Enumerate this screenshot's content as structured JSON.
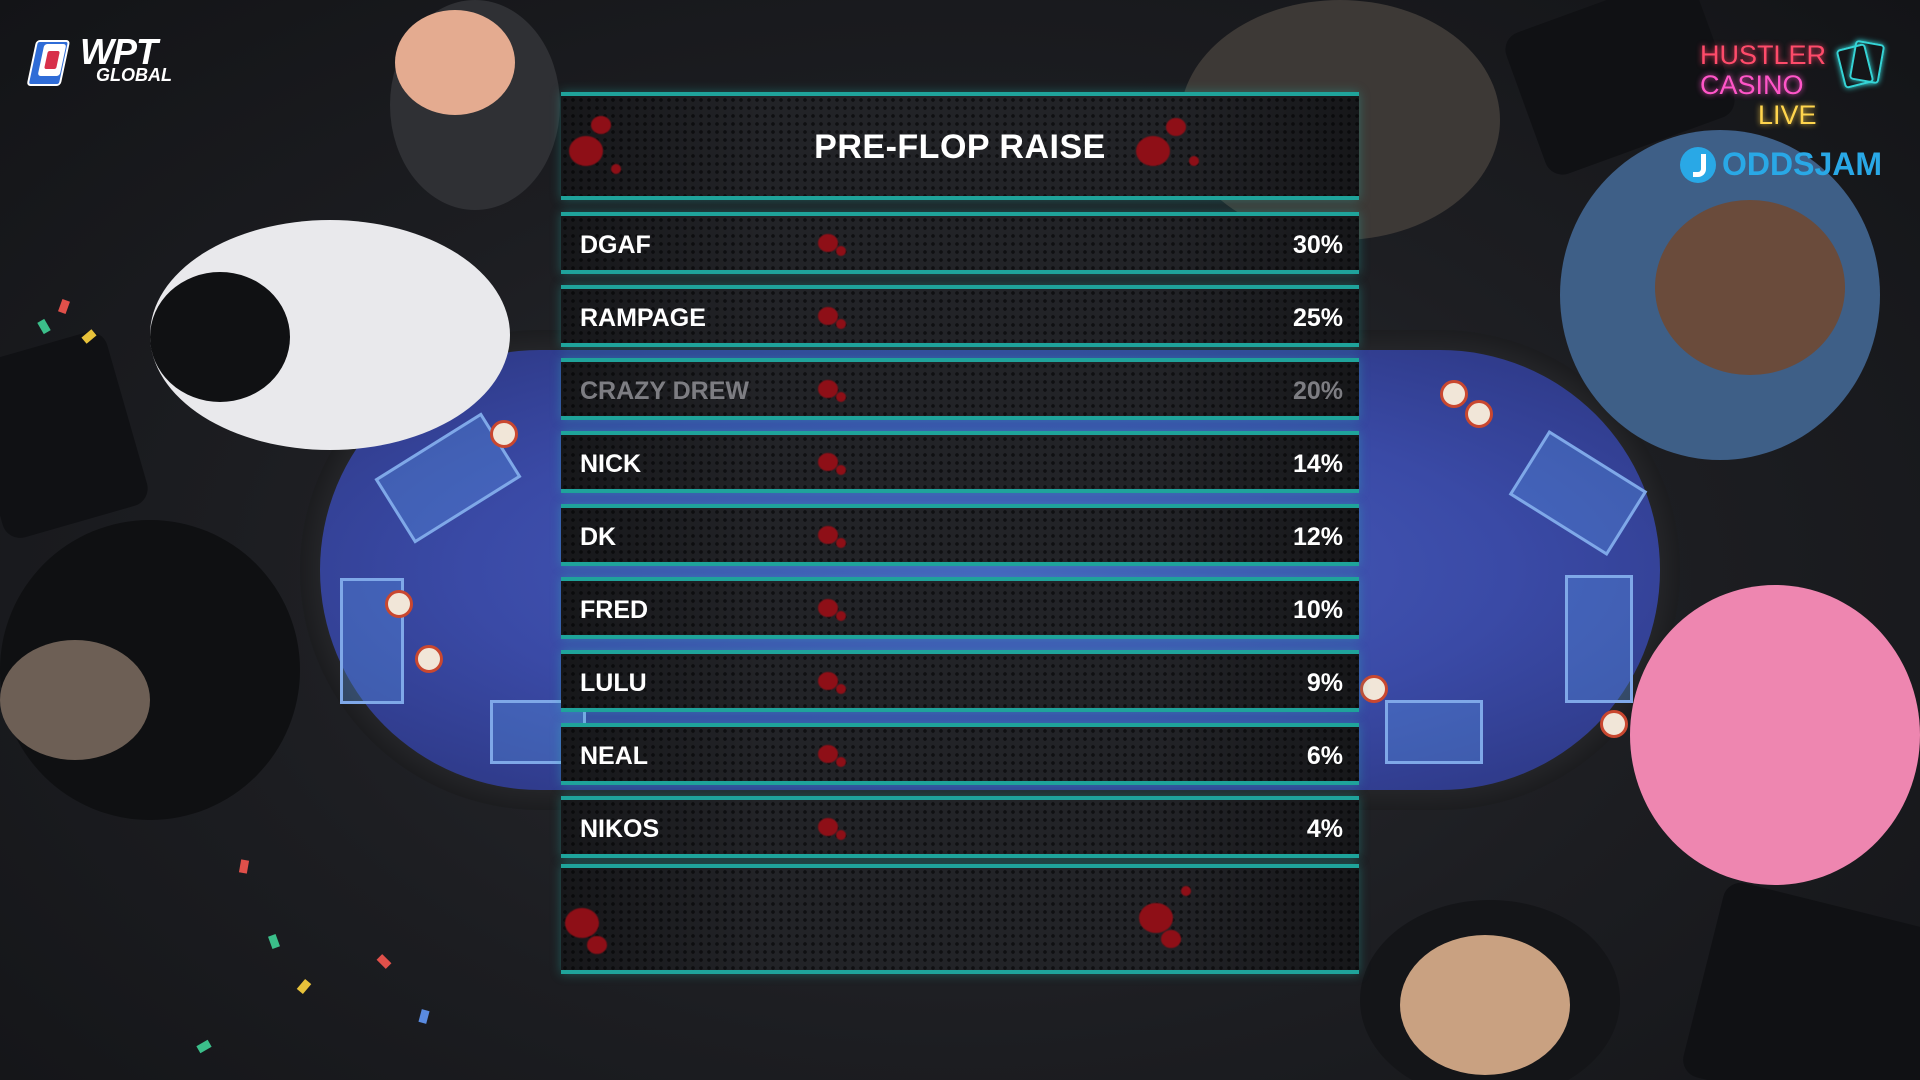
{
  "logos": {
    "wpt_mark": "WPT",
    "wpt_sub": "GLOBAL",
    "hustler_line1": "HUSTLER",
    "hustler_line2": "CASINO",
    "hustler_line3": "LIVE",
    "oddsjam": "ODDSJAM"
  },
  "leaderboard": {
    "title": "PRE-FLOP RAISE",
    "rows": [
      {
        "name": "DGAF",
        "value": "30%"
      },
      {
        "name": "RAMPAGE",
        "value": "25%"
      },
      {
        "name": "CRAZY DREW",
        "value": "20%"
      },
      {
        "name": "NICK",
        "value": "14%"
      },
      {
        "name": "DK",
        "value": "12%"
      },
      {
        "name": "FRED",
        "value": "10%"
      },
      {
        "name": "LULU",
        "value": "9%"
      },
      {
        "name": "NEAL",
        "value": "6%"
      },
      {
        "name": "NIKOS",
        "value": "4%"
      }
    ],
    "dimmed_row": "CRAZY DREW"
  },
  "colors": {
    "frame_accent": "#1fa39b",
    "splatter": "#8e0f17",
    "felt": "#3a4aa6",
    "hustler_pink": "#ff4b6a",
    "oddsjam_blue": "#29a8e6"
  }
}
